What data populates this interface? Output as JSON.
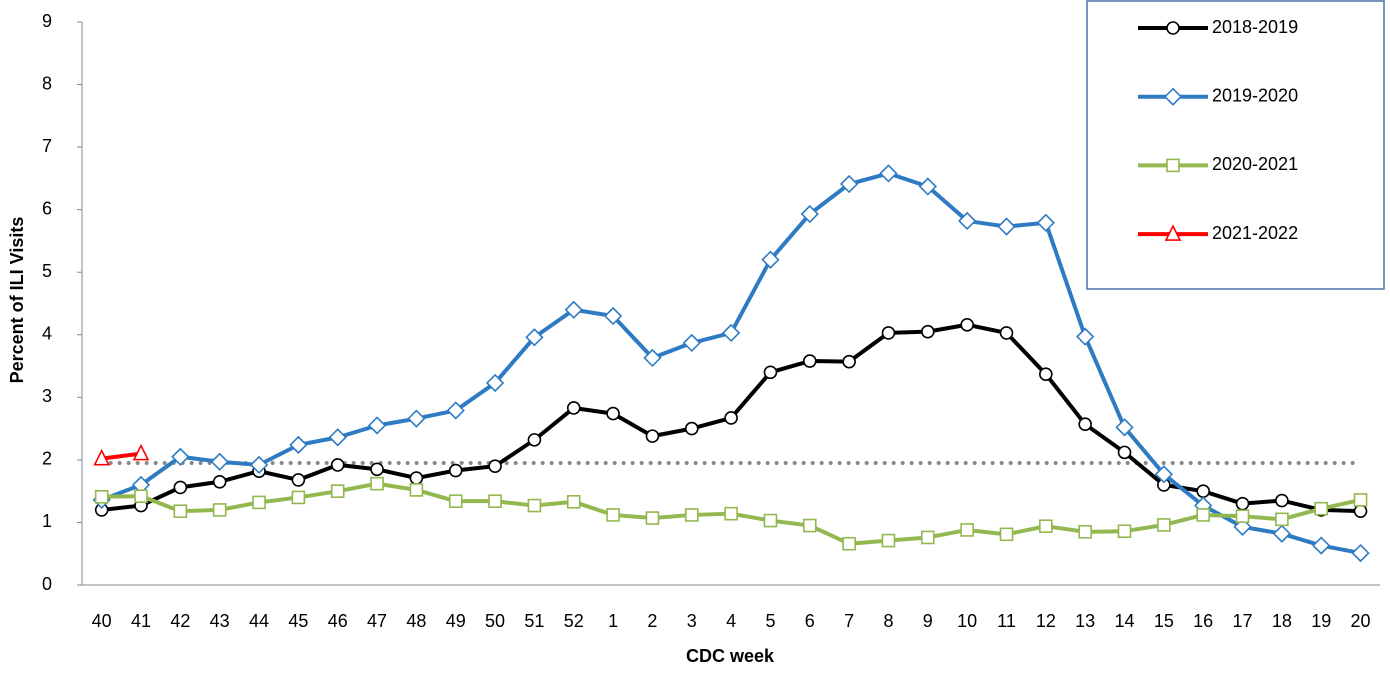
{
  "chart_data": {
    "type": "line",
    "x_label": "CDC week",
    "y_label": "Percent of ILI Visits",
    "categories": [
      "40",
      "41",
      "42",
      "43",
      "44",
      "45",
      "46",
      "47",
      "48",
      "49",
      "50",
      "51",
      "52",
      "1",
      "2",
      "3",
      "4",
      "5",
      "6",
      "7",
      "8",
      "9",
      "10",
      "11",
      "12",
      "13",
      "14",
      "15",
      "16",
      "17",
      "18",
      "19",
      "20"
    ],
    "series": [
      {
        "name": "2018-2019",
        "color": "#000000",
        "marker": "circle",
        "values": [
          1.2,
          1.27,
          1.56,
          1.65,
          1.82,
          1.68,
          1.92,
          1.85,
          1.71,
          1.83,
          1.9,
          2.32,
          2.83,
          2.74,
          2.38,
          2.5,
          2.67,
          3.4,
          3.58,
          3.57,
          4.03,
          4.05,
          4.16,
          4.03,
          3.37,
          2.57,
          2.12,
          1.6,
          1.5,
          1.3,
          1.35,
          1.2,
          1.18
        ]
      },
      {
        "name": "2019-2020",
        "color": "#2e7bc4",
        "marker": "diamond",
        "values": [
          1.36,
          1.6,
          2.05,
          1.97,
          1.92,
          2.24,
          2.36,
          2.55,
          2.66,
          2.79,
          3.23,
          3.96,
          4.4,
          4.3,
          3.63,
          3.87,
          4.03,
          5.2,
          5.93,
          6.41,
          6.58,
          6.37,
          5.82,
          5.73,
          5.79,
          3.97,
          2.52,
          1.77,
          1.27,
          0.93,
          0.82,
          0.63,
          0.51
        ]
      },
      {
        "name": "2020-2021",
        "color": "#92b84f",
        "marker": "square",
        "values": [
          1.41,
          1.42,
          1.18,
          1.2,
          1.32,
          1.4,
          1.5,
          1.62,
          1.52,
          1.34,
          1.34,
          1.27,
          1.33,
          1.12,
          1.07,
          1.12,
          1.14,
          1.03,
          0.95,
          0.66,
          0.71,
          0.76,
          0.88,
          0.81,
          0.94,
          0.85,
          0.86,
          0.96,
          1.12,
          1.1,
          1.05,
          1.22,
          1.36
        ]
      },
      {
        "name": "2021-2022",
        "color": "#ff0000",
        "marker": "triangle",
        "values": [
          2.02,
          2.1,
          null,
          null,
          null,
          null,
          null,
          null,
          null,
          null,
          null,
          null,
          null,
          null,
          null,
          null,
          null,
          null,
          null,
          null,
          null,
          null,
          null,
          null,
          null,
          null,
          null,
          null,
          null,
          null,
          null,
          null,
          null
        ]
      }
    ],
    "reference_line": 1.95,
    "ylim": [
      0,
      9
    ],
    "yticks": [
      0,
      1,
      2,
      3,
      4,
      5,
      6,
      7,
      8,
      9
    ],
    "grid": false,
    "legend": "top-right"
  }
}
